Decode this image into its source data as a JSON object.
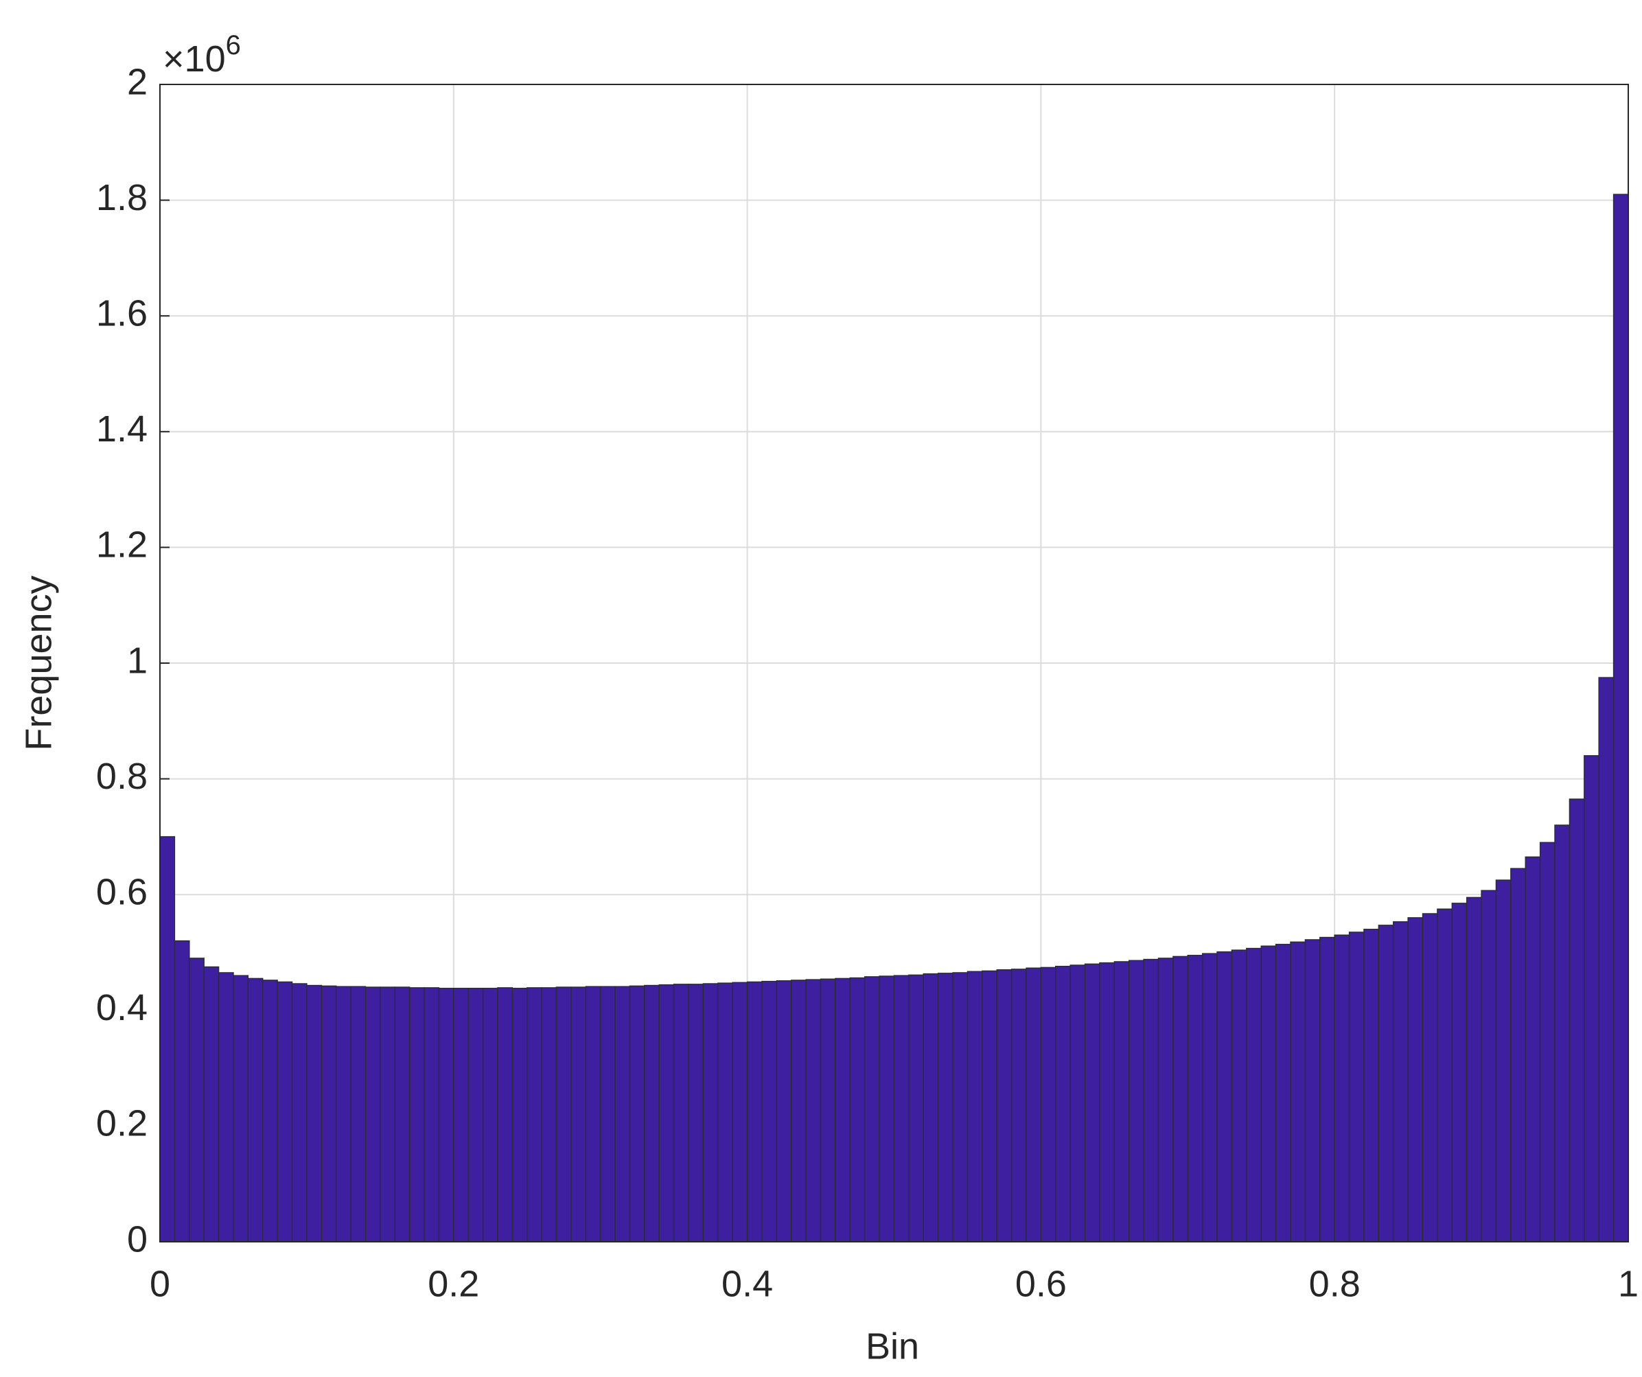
{
  "chart_data": {
    "type": "histogram",
    "x_label": "Bin",
    "y_label": "Frequency",
    "y_multiplier_base": "×10",
    "y_multiplier_exponent": "6",
    "bins": [
      0,
      0.01,
      0.02,
      0.03,
      0.04,
      0.05,
      0.06,
      0.07,
      0.08,
      0.09,
      0.1,
      0.11,
      0.12,
      0.13,
      0.14,
      0.15,
      0.16,
      0.17,
      0.18,
      0.19,
      0.2,
      0.21,
      0.22,
      0.23,
      0.24,
      0.25,
      0.26,
      0.27,
      0.28,
      0.29,
      0.3,
      0.31,
      0.32,
      0.33,
      0.34,
      0.35,
      0.36,
      0.37,
      0.38,
      0.39,
      0.4,
      0.41,
      0.42,
      0.43,
      0.44,
      0.45,
      0.46,
      0.47,
      0.48,
      0.49,
      0.5,
      0.51,
      0.52,
      0.53,
      0.54,
      0.55,
      0.56,
      0.57,
      0.58,
      0.59,
      0.6,
      0.61,
      0.62,
      0.63,
      0.64,
      0.65,
      0.66,
      0.67,
      0.68,
      0.69,
      0.7,
      0.71,
      0.72,
      0.73,
      0.74,
      0.75,
      0.76,
      0.77,
      0.78,
      0.79,
      0.8,
      0.81,
      0.82,
      0.83,
      0.84,
      0.85,
      0.86,
      0.87,
      0.88,
      0.89,
      0.9,
      0.91,
      0.92,
      0.93,
      0.94,
      0.95,
      0.96,
      0.97,
      0.98,
      0.99,
      1
    ],
    "values": [
      0.7,
      0.52,
      0.49,
      0.475,
      0.465,
      0.46,
      0.455,
      0.452,
      0.449,
      0.446,
      0.443,
      0.442,
      0.441,
      0.441,
      0.44,
      0.44,
      0.44,
      0.439,
      0.439,
      0.438,
      0.438,
      0.438,
      0.438,
      0.439,
      0.438,
      0.439,
      0.439,
      0.44,
      0.44,
      0.441,
      0.441,
      0.441,
      0.442,
      0.443,
      0.444,
      0.445,
      0.445,
      0.446,
      0.447,
      0.448,
      0.449,
      0.45,
      0.451,
      0.452,
      0.453,
      0.454,
      0.455,
      0.456,
      0.458,
      0.459,
      0.46,
      0.461,
      0.463,
      0.464,
      0.465,
      0.467,
      0.468,
      0.47,
      0.471,
      0.473,
      0.474,
      0.476,
      0.478,
      0.48,
      0.482,
      0.484,
      0.486,
      0.488,
      0.49,
      0.493,
      0.495,
      0.498,
      0.501,
      0.504,
      0.507,
      0.511,
      0.514,
      0.518,
      0.522,
      0.526,
      0.53,
      0.535,
      0.54,
      0.547,
      0.553,
      0.56,
      0.567,
      0.575,
      0.585,
      0.595,
      0.607,
      0.625,
      0.645,
      0.665,
      0.69,
      0.72,
      0.765,
      0.84,
      0.975,
      1.81
    ],
    "color": "#3e1fa0",
    "edge_color": "#2b2b3a",
    "xlim": [
      0,
      1
    ],
    "xticks": [
      0,
      0.2,
      0.4,
      0.6,
      0.8,
      1
    ],
    "ylim": [
      0,
      2
    ],
    "yticks": [
      0,
      0.2,
      0.4,
      0.6,
      0.8,
      1,
      1.2,
      1.4,
      1.6,
      1.8,
      2
    ],
    "grid": true
  }
}
